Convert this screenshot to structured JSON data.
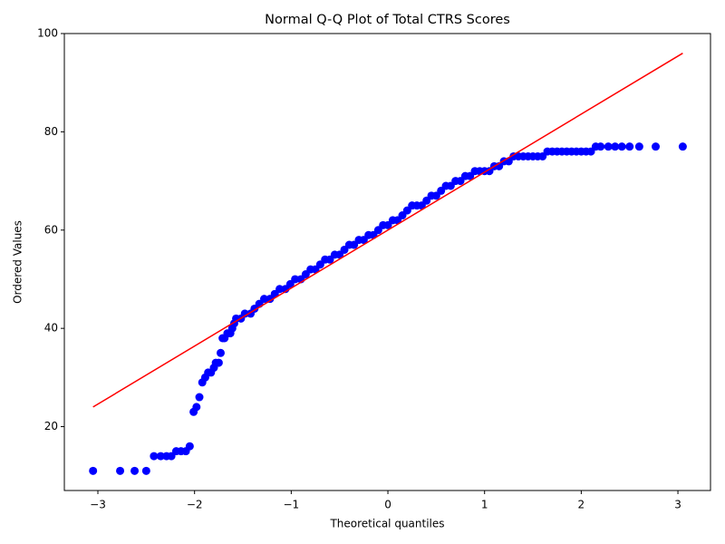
{
  "chart_data": {
    "type": "scatter",
    "title": "Normal Q-Q Plot of Total CTRS Scores",
    "x_label": "Theoretical quantiles",
    "y_label": "Ordered Values",
    "xlim": [
      -3.347,
      3.337
    ],
    "ylim": [
      7,
      100
    ],
    "xticks": [
      {
        "value": -3,
        "label": "−3"
      },
      {
        "value": -2,
        "label": "−2"
      },
      {
        "value": -1,
        "label": "−1"
      },
      0,
      1,
      2,
      3
    ],
    "yticks": [
      20,
      40,
      60,
      80,
      100
    ],
    "grid": false,
    "color": "#0000ff",
    "x": [
      -3.05,
      -2.77,
      -2.62,
      -2.5,
      -2.42,
      -2.35,
      -2.29,
      -2.24,
      -2.19,
      -2.14,
      -2.09,
      -2.05,
      -2.01,
      -1.98,
      -1.95,
      -1.92,
      -1.89,
      -1.86,
      -1.83,
      -1.8,
      -1.78,
      -1.75,
      -1.73,
      -1.71,
      -1.69,
      -1.66,
      -1.63,
      -1.61,
      -1.59,
      -1.57,
      -1.52,
      -1.48,
      -1.42,
      -1.38,
      -1.33,
      -1.28,
      -1.22,
      -1.17,
      -1.12,
      -1.06,
      -1.01,
      -0.96,
      -0.9,
      -0.85,
      -0.8,
      -0.75,
      -0.7,
      -0.65,
      -0.6,
      -0.55,
      -0.5,
      -0.45,
      -0.4,
      -0.35,
      -0.3,
      -0.25,
      -0.2,
      -0.15,
      -0.1,
      -0.05,
      0,
      0.05,
      0.1,
      0.15,
      0.2,
      0.25,
      0.3,
      0.35,
      0.4,
      0.45,
      0.5,
      0.55,
      0.6,
      0.65,
      0.7,
      0.75,
      0.8,
      0.85,
      0.9,
      0.95,
      1.0,
      1.05,
      1.1,
      1.15,
      1.2,
      1.25,
      1.3,
      1.35,
      1.4,
      1.45,
      1.5,
      1.55,
      1.6,
      1.65,
      1.7,
      1.75,
      1.8,
      1.85,
      1.9,
      1.95,
      2.0,
      2.05,
      2.1,
      2.15,
      2.2,
      2.28,
      2.35,
      2.42,
      2.5,
      2.6,
      2.77,
      3.05
    ],
    "values": [
      11,
      11,
      11,
      11,
      14,
      14,
      14,
      14,
      15,
      15,
      15,
      16,
      23,
      24,
      26,
      29,
      30,
      31,
      31,
      32,
      33,
      33,
      35,
      38,
      38,
      39,
      39,
      40,
      41,
      42,
      42,
      43,
      43,
      44,
      45,
      46,
      46,
      47,
      48,
      48,
      49,
      50,
      50,
      51,
      52,
      52,
      53,
      54,
      54,
      55,
      55,
      56,
      57,
      57,
      58,
      58,
      59,
      59,
      60,
      61,
      61,
      62,
      62,
      63,
      64,
      65,
      65,
      65,
      66,
      67,
      67,
      68,
      69,
      69,
      70,
      70,
      71,
      71,
      72,
      72,
      72,
      72,
      73,
      73,
      74,
      74,
      75,
      75,
      75,
      75,
      75,
      75,
      75,
      76,
      76,
      76,
      76,
      76,
      76,
      76,
      76,
      76,
      76,
      77,
      77,
      77,
      77,
      77,
      77,
      77,
      77,
      77
    ],
    "line": {
      "x": [
        -3.05,
        3.05
      ],
      "values": [
        24,
        96
      ],
      "color": "#ff0000"
    }
  }
}
